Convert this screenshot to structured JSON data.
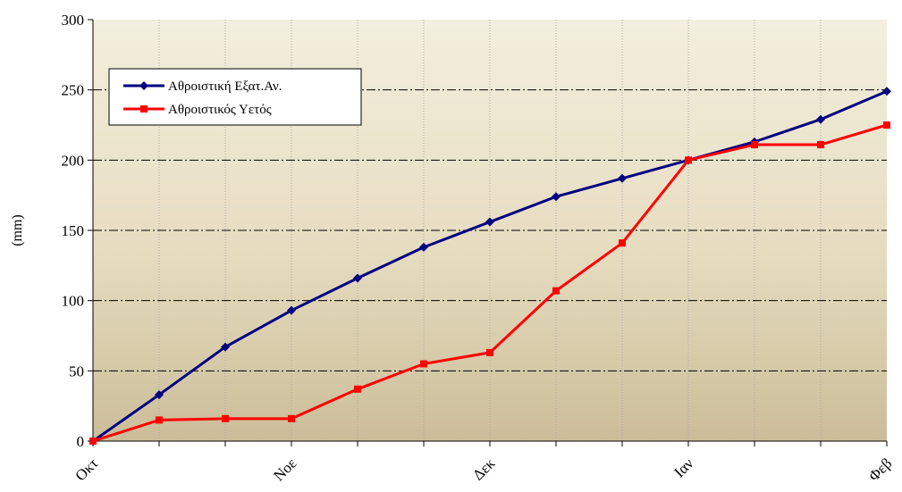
{
  "chart_data": {
    "type": "line",
    "title": "",
    "xlabel": "",
    "ylabel": "(mm)",
    "ylim": [
      0,
      300
    ],
    "yticks": [
      0,
      50,
      100,
      150,
      200,
      250,
      300
    ],
    "x_tick_labels": [
      "Οκτ",
      "Νοε",
      "Δεκ",
      "Ιαν",
      "Φεβ"
    ],
    "n_points": 13,
    "grid": "horizontal dash-dot at y ticks, vertical dotted at each point",
    "legend_position": "top-left",
    "series": [
      {
        "name": "Αθροιστική Εξατ.Αν.",
        "color": "#000080",
        "marker": "diamond",
        "values": [
          0,
          33,
          67,
          93,
          116,
          138,
          156,
          174,
          187,
          200,
          213,
          229,
          249
        ]
      },
      {
        "name": "Αθροιστικός Υετός",
        "color": "#ff0000",
        "marker": "square",
        "values": [
          0,
          15,
          16,
          16,
          37,
          55,
          63,
          107,
          141,
          200,
          211,
          211,
          225
        ]
      }
    ]
  },
  "colors": {
    "plot_bg_top": "#f3efde",
    "plot_bg_bottom": "#cbbd98"
  }
}
